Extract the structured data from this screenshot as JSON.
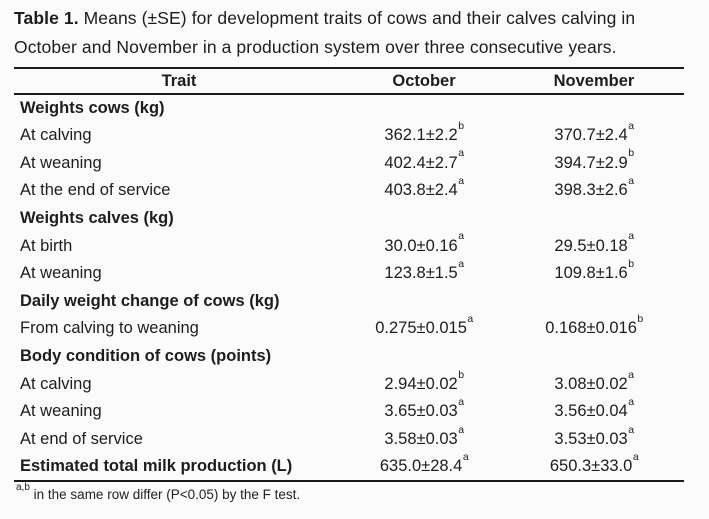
{
  "caption": {
    "label": "Table 1.",
    "text": " Means (±SE) for development traits of cows and their calves calving in October and November in a production system over three consecutive years."
  },
  "table": {
    "columns": {
      "trait": "Trait",
      "october": "October",
      "november": "November"
    },
    "rows": [
      {
        "type": "section",
        "trait": "Weights cows (kg)"
      },
      {
        "type": "data",
        "trait": "At calving",
        "october": {
          "v": "362.1±2.2",
          "s": "b"
        },
        "november": {
          "v": "370.7±2.4",
          "s": "a"
        }
      },
      {
        "type": "data",
        "trait": "At weaning",
        "october": {
          "v": "402.4±2.7",
          "s": "a"
        },
        "november": {
          "v": "394.7±2.9",
          "s": "b"
        }
      },
      {
        "type": "data",
        "trait": "At the end of service",
        "october": {
          "v": "403.8±2.4",
          "s": "a"
        },
        "november": {
          "v": "398.3±2.6",
          "s": "a"
        }
      },
      {
        "type": "section",
        "trait": "Weights calves (kg)"
      },
      {
        "type": "data",
        "trait": "At birth",
        "october": {
          "v": "30.0±0.16",
          "s": "a"
        },
        "november": {
          "v": "29.5±0.18",
          "s": "a"
        }
      },
      {
        "type": "data",
        "trait": "At weaning",
        "october": {
          "v": "123.8±1.5",
          "s": "a"
        },
        "november": {
          "v": "109.8±1.6",
          "s": "b"
        }
      },
      {
        "type": "section",
        "trait": "Daily weight change of cows (kg)"
      },
      {
        "type": "data",
        "trait": "From calving to weaning",
        "october": {
          "v": "0.275±0.015",
          "s": "a"
        },
        "november": {
          "v": "0.168±0.016",
          "s": "b"
        }
      },
      {
        "type": "section",
        "trait": "Body condition of cows (points)"
      },
      {
        "type": "data",
        "trait": "At calving",
        "october": {
          "v": "2.94±0.02",
          "s": "b"
        },
        "november": {
          "v": "3.08±0.02",
          "s": "a"
        }
      },
      {
        "type": "data",
        "trait": "At weaning",
        "october": {
          "v": "3.65±0.03",
          "s": "a"
        },
        "november": {
          "v": "3.56±0.04",
          "s": "a"
        }
      },
      {
        "type": "data",
        "trait": "At end of service",
        "october": {
          "v": "3.58±0.03",
          "s": "a"
        },
        "november": {
          "v": "3.53±0.03",
          "s": "a"
        }
      },
      {
        "type": "data-bold",
        "trait": "Estimated total milk production (L)",
        "october": {
          "v": "635.0±28.4",
          "s": "a"
        },
        "november": {
          "v": "650.3±33.0",
          "s": "a"
        }
      }
    ]
  },
  "footnote": {
    "sup": "a,b",
    "text": " in the same row differ (P<0.05) by the F test."
  },
  "colors": {
    "background": "#fbfbfb",
    "text": "#1d1d1d",
    "rule": "#1a1a1a"
  }
}
